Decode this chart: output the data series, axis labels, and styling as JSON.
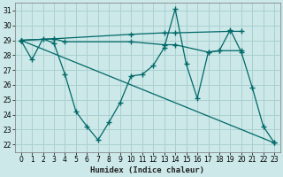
{
  "xlabel": "Humidex (Indice chaleur)",
  "background_color": "#cce8e8",
  "grid_color": "#aad0d0",
  "line_color": "#006868",
  "xlim": [
    -0.5,
    23.5
  ],
  "ylim": [
    21.5,
    31.5
  ],
  "yticks": [
    22,
    23,
    24,
    25,
    26,
    27,
    28,
    29,
    30,
    31
  ],
  "xticks": [
    0,
    1,
    2,
    3,
    4,
    5,
    6,
    7,
    8,
    9,
    10,
    11,
    12,
    13,
    14,
    15,
    16,
    17,
    18,
    19,
    20,
    21,
    22,
    23
  ],
  "lines": [
    {
      "x": [
        0,
        1,
        2,
        3,
        4,
        5,
        6,
        7,
        8,
        9,
        10,
        11,
        12,
        13,
        14,
        15,
        16,
        17,
        18,
        19,
        20,
        21,
        22,
        23
      ],
      "y": [
        29,
        27.7,
        29.1,
        28.8,
        26.7,
        24.2,
        23.2,
        22.3,
        23.5,
        24.8,
        26.6,
        26.7,
        27.3,
        28.5,
        31.1,
        27.4,
        25.1,
        28.2,
        28.3,
        29.7,
        28.2,
        25.8,
        23.2,
        22.1
      ]
    },
    {
      "x": [
        0,
        3,
        10,
        13,
        14,
        19,
        20
      ],
      "y": [
        29,
        29.1,
        29.4,
        29.5,
        29.5,
        29.6,
        29.6
      ]
    },
    {
      "x": [
        0,
        3,
        4,
        10,
        13,
        14,
        17,
        18,
        20
      ],
      "y": [
        29,
        29.1,
        28.9,
        28.9,
        28.7,
        28.7,
        28.2,
        28.3,
        28.3
      ]
    },
    {
      "x": [
        0,
        23
      ],
      "y": [
        29,
        22.1
      ]
    }
  ]
}
